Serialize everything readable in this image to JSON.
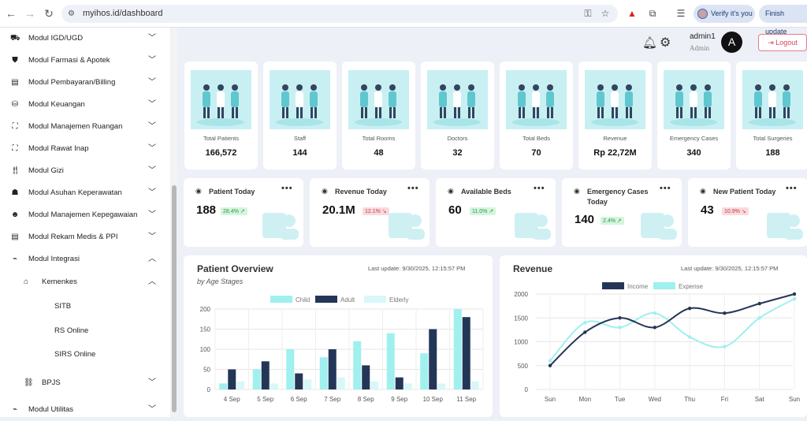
{
  "browser": {
    "url": "myihos.id/dashboard",
    "verify_label": "Verify it's you",
    "finish_label": "Finish update"
  },
  "sidebar": {
    "items": [
      {
        "label": "Modul IGD/UGD",
        "icon": "ambulance-icon"
      },
      {
        "label": "Modul Farmasi & Apotek",
        "icon": "pharmacy-icon"
      },
      {
        "label": "Modul Pembayaran/Billing",
        "icon": "invoice-icon"
      },
      {
        "label": "Modul Keuangan",
        "icon": "coins-icon"
      },
      {
        "label": "Modul Manajemen Ruangan",
        "icon": "bed-icon"
      },
      {
        "label": "Modul Rawat Inap",
        "icon": "bed-icon"
      },
      {
        "label": "Modul Gizi",
        "icon": "utensils-icon"
      },
      {
        "label": "Modul Asuhan Keperawatan",
        "icon": "nurse-icon"
      },
      {
        "label": "Modul Manajemen Kepegawaian",
        "icon": "users-icon"
      },
      {
        "label": "Modul Rekam Medis & PPI",
        "icon": "file-medical-icon"
      },
      {
        "label": "Modul Integrasi",
        "icon": "plug-icon"
      }
    ],
    "kemenkes": {
      "label": "Kemenkes",
      "children": [
        "SITB",
        "RS Online",
        "SIRS Online"
      ]
    },
    "bpjs": {
      "label": "BPJS"
    },
    "utilitas": {
      "label": "Modul Utilitas"
    }
  },
  "header": {
    "user_name": "admin1",
    "user_role": "Admin",
    "avatar_letter": "A",
    "logout_label": "Logout"
  },
  "stats": [
    {
      "label": "Total Patients",
      "value": "166,572"
    },
    {
      "label": "Staff",
      "value": "144"
    },
    {
      "label": "Total Rooms",
      "value": "48"
    },
    {
      "label": "Doctors",
      "value": "32"
    },
    {
      "label": "Total Beds",
      "value": "70"
    },
    {
      "label": "Revenue",
      "value": "Rp 22,72M"
    },
    {
      "label": "Emergency Cases",
      "value": "340"
    },
    {
      "label": "Total Surgeries",
      "value": "188"
    }
  ],
  "kpis": [
    {
      "title": "Patient Today",
      "value": "188",
      "change": "28.4%",
      "trend": "up"
    },
    {
      "title": "Revenue Today",
      "value": "20.1M",
      "change": "12.1%",
      "trend": "down"
    },
    {
      "title": "Available Beds",
      "value": "60",
      "change": "11.0%",
      "trend": "up"
    },
    {
      "title": "Emergency Cases Today",
      "value": "140",
      "change": "2.4%",
      "trend": "up"
    },
    {
      "title": "New Patient Today",
      "value": "43",
      "change": "10.9%",
      "trend": "down"
    }
  ],
  "patient_overview": {
    "title": "Patient Overview",
    "subtitle": "by Age Stages",
    "updated": "Last update: 9/30/2025, 12:15:57 PM"
  },
  "revenue_panel": {
    "title": "Revenue",
    "updated": "Last update: 9/30/2025, 12:15:57 PM"
  },
  "colors": {
    "accent": "#9ff0ee",
    "navy": "#243657",
    "light": "#d8f7f8",
    "logout": "#d9465e"
  },
  "chart_data": [
    {
      "type": "bar",
      "categories": [
        "4 Sep",
        "5 Sep",
        "6 Sep",
        "7 Sep",
        "8 Sep",
        "9 Sep",
        "10 Sep",
        "11 Sep"
      ],
      "series": [
        {
          "name": "Child",
          "values": [
            15,
            50,
            100,
            80,
            120,
            140,
            90,
            200
          ],
          "color": "#9ff0ee"
        },
        {
          "name": "Adult",
          "values": [
            50,
            70,
            40,
            100,
            60,
            30,
            150,
            180
          ],
          "color": "#243657"
        },
        {
          "name": "Elderly",
          "values": [
            20,
            15,
            25,
            30,
            20,
            15,
            15,
            20
          ],
          "color": "#d8f7f8"
        }
      ],
      "ylim": [
        0,
        200
      ],
      "yticks": [
        0,
        50,
        100,
        150,
        200
      ],
      "legend": "top"
    },
    {
      "type": "line",
      "categories": [
        "Sun",
        "Mon",
        "Tue",
        "Wed",
        "Thu",
        "Fri",
        "Sat",
        "Sun"
      ],
      "series": [
        {
          "name": "Income",
          "values": [
            500,
            1200,
            1500,
            1300,
            1700,
            1600,
            1800,
            2000
          ],
          "color": "#243657"
        },
        {
          "name": "Expense",
          "values": [
            600,
            1400,
            1300,
            1600,
            1100,
            900,
            1500,
            1900
          ],
          "color": "#9ff0ee"
        }
      ],
      "ylim": [
        0,
        2000
      ],
      "yticks": [
        0,
        500,
        1000,
        1500,
        2000
      ],
      "legend": "top"
    }
  ]
}
